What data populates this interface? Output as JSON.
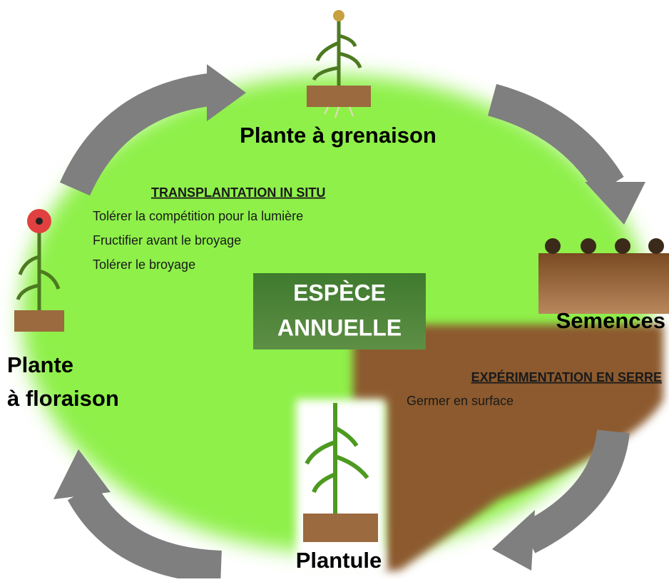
{
  "center": {
    "lines": [
      "ESPÈCE",
      "ANNUELLE"
    ]
  },
  "stages": [
    {
      "lines": [
        "Plante à grenaison"
      ]
    },
    {
      "lines": [
        "Semences"
      ]
    },
    {
      "lines": [
        "Plantule"
      ]
    },
    {
      "lines": [
        "Plante",
        "à floraison"
      ]
    }
  ],
  "sections": [
    {
      "title": "TRANSPLANTATION IN SITU",
      "items": [
        "Tolérer la compétition pour la lumière",
        "Fructifier avant le broyage",
        "Tolérer le broyage"
      ]
    },
    {
      "title": "EXPÉRIMENTATION EN SERRE",
      "items": [
        "Germer en surface"
      ]
    }
  ]
}
